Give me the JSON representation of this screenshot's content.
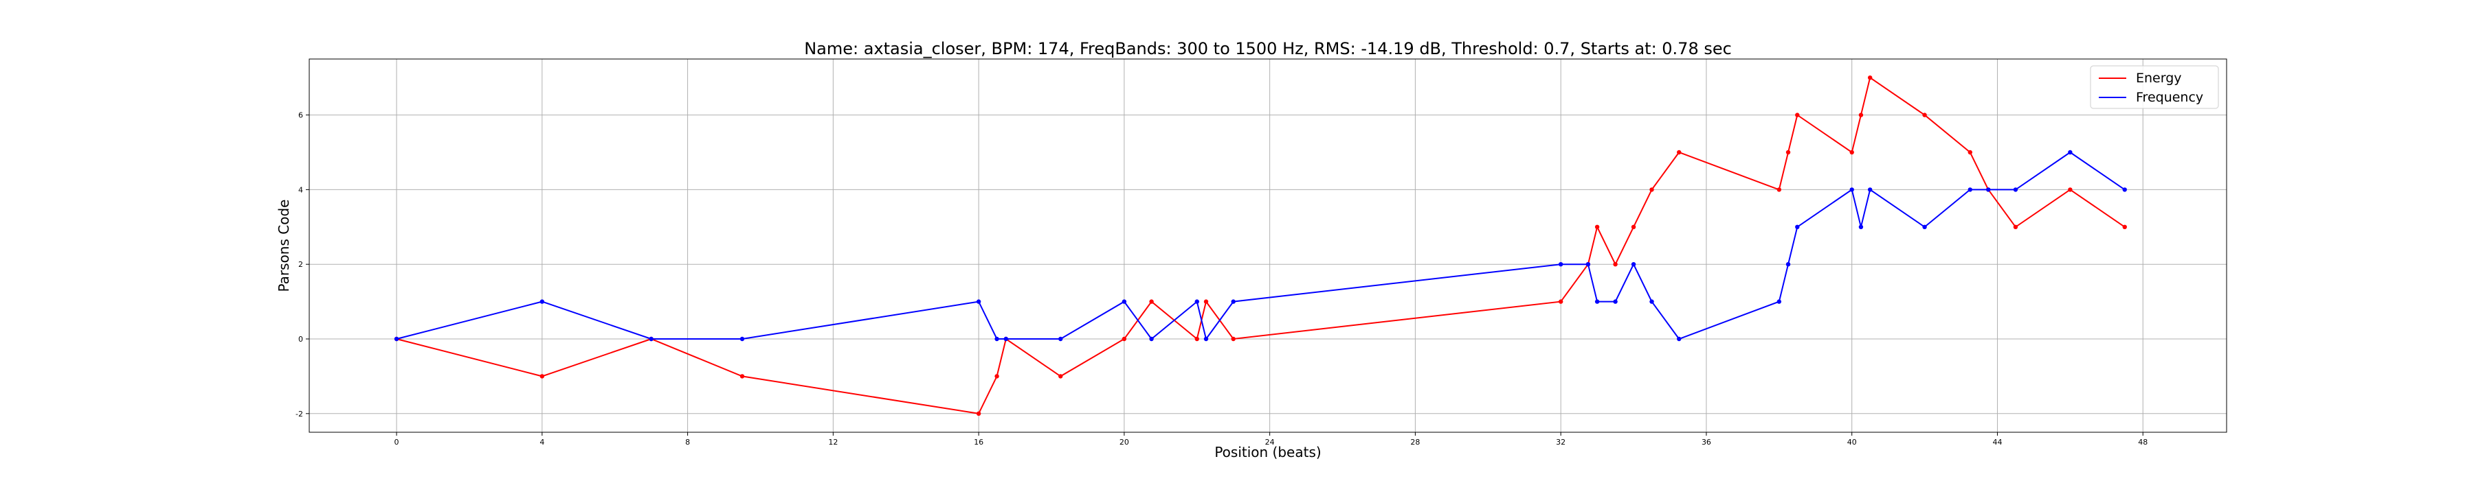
{
  "chart_data": {
    "type": "line",
    "title": "Name: axtasia_closer, BPM: 174, FreqBands: 300 to 1500 Hz, RMS: -14.19 dB, Threshold: 0.7, Starts at: 0.78 sec",
    "xlabel": "Position (beats)",
    "ylabel": "Parsons Code",
    "xlim": [
      -2.4,
      50.3
    ],
    "ylim": [
      -2.5,
      7.5
    ],
    "xticks": [
      0,
      4,
      8,
      12,
      16,
      20,
      24,
      28,
      32,
      36,
      40,
      44,
      48
    ],
    "yticks": [
      -2,
      0,
      2,
      4,
      6
    ],
    "grid": true,
    "legend_position": "top-right",
    "series": [
      {
        "name": "Energy",
        "color": "#ff0000",
        "x": [
          0,
          4,
          7,
          9.5,
          16,
          16.5,
          16.75,
          18.25,
          20,
          20.75,
          22,
          22.25,
          23,
          32,
          32.75,
          33,
          33.5,
          34,
          34.5,
          35.25,
          38,
          38.25,
          38.5,
          40,
          40.25,
          40.5,
          42,
          43.25,
          43.75,
          44.5,
          46,
          47.5
        ],
        "y": [
          0,
          -1,
          0,
          -1,
          -2,
          -1,
          0,
          -1,
          0,
          1,
          0,
          1,
          0,
          1,
          2,
          3,
          2,
          3,
          4,
          5,
          4,
          5,
          6,
          5,
          6,
          7,
          6,
          5,
          4,
          3,
          4,
          3
        ]
      },
      {
        "name": "Frequency",
        "color": "#0000ff",
        "x": [
          0,
          4,
          7,
          9.5,
          16,
          16.5,
          16.75,
          18.25,
          20,
          20.75,
          22,
          22.25,
          23,
          32,
          32.75,
          33,
          33.5,
          34,
          34.5,
          35.25,
          38,
          38.25,
          38.5,
          40,
          40.25,
          40.5,
          42,
          43.25,
          43.75,
          44.5,
          46,
          47.5
        ],
        "y": [
          0,
          1,
          0,
          0,
          1,
          0,
          0,
          0,
          1,
          0,
          1,
          0,
          1,
          2,
          2,
          1,
          1,
          2,
          1,
          0,
          1,
          2,
          3,
          4,
          3,
          4,
          3,
          4,
          4,
          4,
          5,
          4
        ]
      }
    ]
  }
}
